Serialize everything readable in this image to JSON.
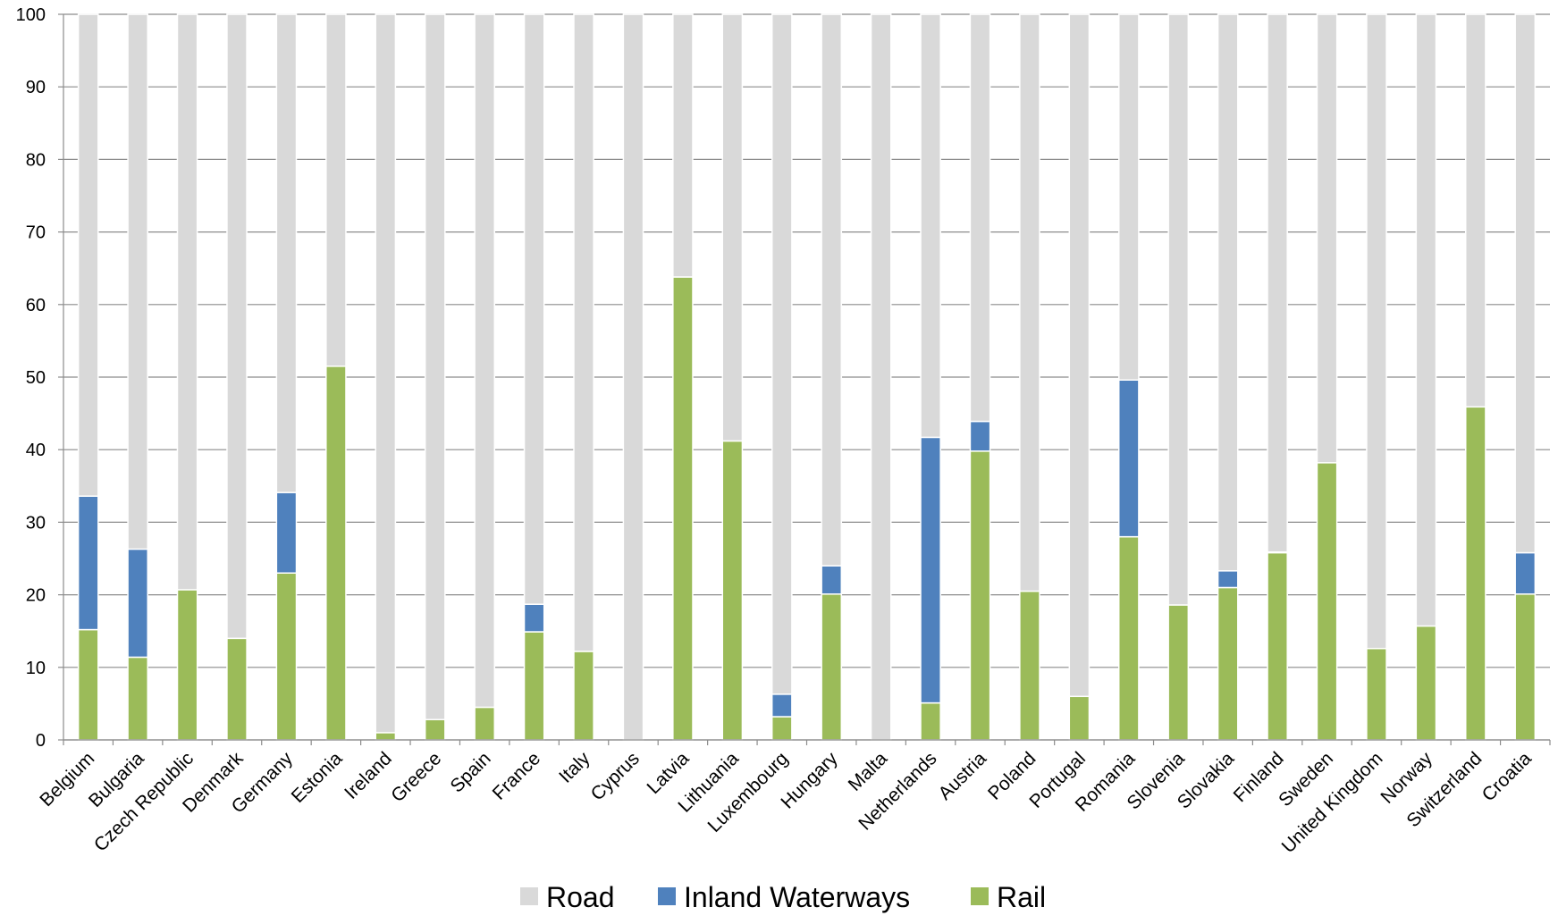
{
  "chart_data": {
    "type": "bar",
    "stacked": true,
    "title": "",
    "xlabel": "",
    "ylabel": "",
    "ylim": [
      0,
      100
    ],
    "yticks": [
      0,
      10,
      20,
      30,
      40,
      50,
      60,
      70,
      80,
      90,
      100
    ],
    "grid": true,
    "legend_position": "bottom",
    "categories": [
      "Belgium",
      "Bulgaria",
      "Czech Republic",
      "Denmark",
      "Germany",
      "Estonia",
      "Ireland",
      "Greece",
      "Spain",
      "France",
      "Italy",
      "Cyprus",
      "Latvia",
      "Lithuania",
      "Luxembourg",
      "Hungary",
      "Malta",
      "Netherlands",
      "Austria",
      "Poland",
      "Portugal",
      "Romania",
      "Slovenia",
      "Slovakia",
      "Finland",
      "Sweden",
      "United Kingdom",
      "Norway",
      "Switzerland",
      "Croatia"
    ],
    "series": [
      {
        "name": "Rail",
        "color": "#9bbb59",
        "values": [
          15.2,
          11.4,
          20.7,
          14.0,
          23.0,
          51.5,
          1.0,
          2.8,
          4.5,
          14.9,
          12.2,
          0.0,
          63.8,
          41.2,
          3.2,
          20.1,
          0.0,
          5.1,
          39.8,
          20.5,
          6.0,
          28.0,
          18.6,
          21.0,
          25.8,
          38.2,
          12.6,
          15.7,
          45.9,
          20.1
        ]
      },
      {
        "name": "Inland Waterways",
        "color": "#4f81bd",
        "values": [
          18.4,
          14.9,
          0.0,
          0.0,
          11.1,
          0.0,
          0.0,
          0.0,
          0.0,
          3.8,
          0.0,
          0.0,
          0.0,
          0.0,
          3.1,
          3.9,
          0.0,
          36.6,
          4.1,
          0.0,
          0.0,
          21.6,
          0.0,
          2.3,
          0.1,
          0.0,
          0.0,
          0.0,
          0.0,
          5.7
        ]
      },
      {
        "name": "Road",
        "color": "#d9d9d9",
        "values": [
          66.4,
          73.7,
          79.3,
          86.0,
          65.9,
          48.5,
          99.0,
          97.2,
          95.5,
          81.3,
          87.8,
          100.0,
          36.2,
          58.8,
          93.7,
          76.0,
          100.0,
          58.3,
          56.1,
          79.5,
          94.0,
          50.4,
          81.4,
          76.7,
          74.1,
          61.8,
          87.4,
          84.3,
          54.1,
          74.2
        ]
      }
    ],
    "legend_order": [
      "Road",
      "Inland Waterways",
      "Rail"
    ]
  }
}
